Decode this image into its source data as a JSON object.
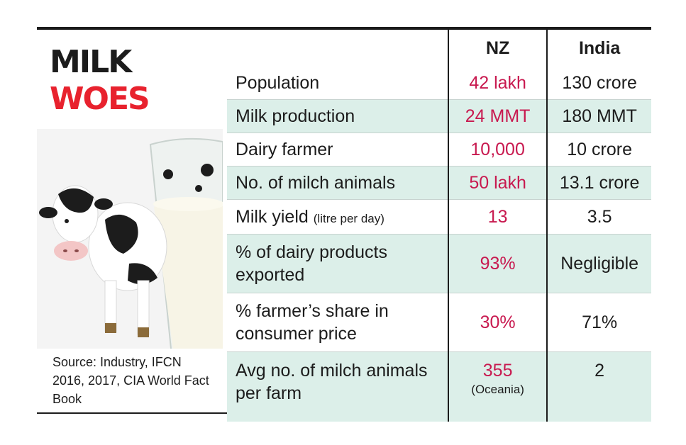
{
  "title": {
    "line1": "MILK",
    "line2": "WOES"
  },
  "source": "Source: Industry, IFCN 2016, 2017, CIA World Fact Book",
  "columns": {
    "nz": "NZ",
    "india": "India"
  },
  "rows": [
    {
      "label": "Population",
      "note": "",
      "nz": "42 lakh",
      "nz_note": "",
      "india": "130 crore"
    },
    {
      "label": "Milk production",
      "note": "",
      "nz": "24 MMT",
      "nz_note": "",
      "india": "180 MMT"
    },
    {
      "label": "Dairy farmer",
      "note": "",
      "nz": "10,000",
      "nz_note": "",
      "india": "10 crore"
    },
    {
      "label": "No. of milch animals",
      "note": "",
      "nz": "50 lakh",
      "nz_note": "",
      "india": "13.1 crore"
    },
    {
      "label": "Milk yield",
      "note": "(litre per day)",
      "nz": "13",
      "nz_note": "",
      "india": "3.5"
    },
    {
      "label": "% of dairy products exported",
      "note": "",
      "nz": "93%",
      "nz_note": "",
      "india": "Negligible"
    },
    {
      "label": "% farmer’s share in consumer price",
      "note": "",
      "nz": "30%",
      "nz_note": "",
      "india": "71%"
    },
    {
      "label": "Avg no. of milch animals per farm",
      "note": "",
      "nz": "355",
      "nz_note": "(Oceania)",
      "india": "2"
    }
  ],
  "colors": {
    "accent": "#e8222e",
    "nz_value": "#c8194f",
    "row_shade": "#dcefe9"
  },
  "icons": {
    "illustration": "cow-and-milk-glass-illustration"
  }
}
